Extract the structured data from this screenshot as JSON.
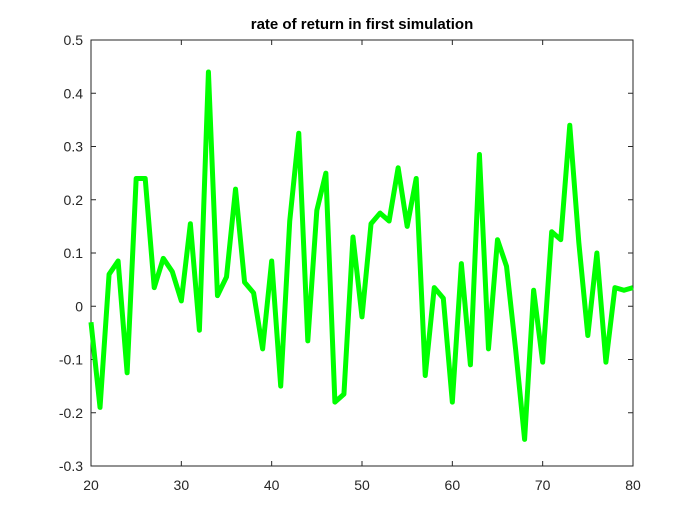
{
  "chart_data": {
    "type": "line",
    "title": "rate of return in first simulation",
    "xlabel": "",
    "ylabel": "",
    "xlim": [
      20,
      80
    ],
    "ylim": [
      -0.3,
      0.5
    ],
    "xticks": [
      20,
      30,
      40,
      50,
      60,
      70,
      80
    ],
    "yticks": [
      -0.3,
      -0.2,
      -0.1,
      0,
      0.1,
      0.2,
      0.3,
      0.4,
      0.5
    ],
    "xtick_labels": [
      "20",
      "30",
      "40",
      "50",
      "60",
      "70",
      "80"
    ],
    "ytick_labels": [
      "-0.3",
      "-0.2",
      "-0.1",
      "0",
      "0.1",
      "0.2",
      "0.3",
      "0.4",
      "0.5"
    ],
    "grid": false,
    "series": [
      {
        "color": "#00ff00",
        "x": [
          20,
          21,
          22,
          23,
          24,
          25,
          26,
          27,
          28,
          29,
          30,
          31,
          32,
          33,
          34,
          35,
          36,
          37,
          38,
          39,
          40,
          41,
          42,
          43,
          44,
          45,
          46,
          47,
          48,
          49,
          50,
          51,
          52,
          53,
          54,
          55,
          56,
          57,
          58,
          59,
          60,
          61,
          62,
          63,
          64,
          65,
          66,
          67,
          68,
          69,
          70,
          71,
          72,
          73,
          74,
          75,
          76,
          77,
          78,
          79,
          80
        ],
        "values": [
          -0.03,
          -0.19,
          0.06,
          0.085,
          -0.125,
          0.24,
          0.24,
          0.035,
          0.09,
          0.065,
          0.01,
          0.155,
          -0.045,
          0.44,
          0.02,
          0.055,
          0.22,
          0.045,
          0.025,
          -0.08,
          0.085,
          -0.15,
          0.16,
          0.325,
          -0.065,
          0.18,
          0.25,
          -0.18,
          -0.165,
          0.13,
          -0.02,
          0.155,
          0.175,
          0.16,
          0.26,
          0.15,
          0.24,
          -0.13,
          0.035,
          0.015,
          -0.18,
          0.08,
          -0.11,
          0.285,
          -0.08,
          0.125,
          0.075,
          -0.08,
          -0.25,
          0.03,
          -0.105,
          0.14,
          0.125,
          0.34,
          0.12,
          -0.055,
          0.1,
          -0.105,
          0.035,
          0.03,
          0.035
        ]
      }
    ]
  }
}
